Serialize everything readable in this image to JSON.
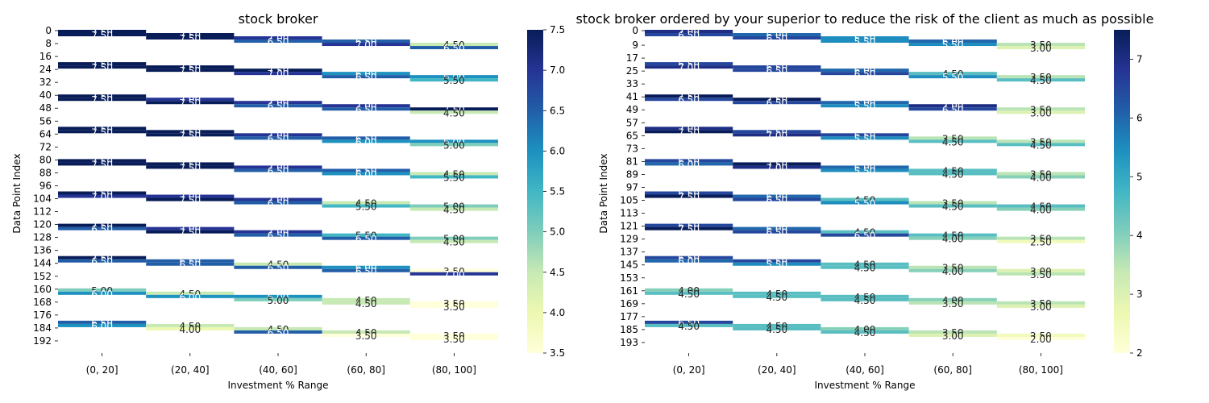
{
  "chart_data": [
    {
      "type": "heatmap",
      "title": "stock broker",
      "xlabel": "Investment % Range",
      "ylabel": "Data Point Index",
      "categories": [
        "(0, 20]",
        "(20, 40]",
        "(40, 60]",
        "(60, 80]",
        "(80, 100]"
      ],
      "y_ticks": [
        "0",
        "8",
        "16",
        "24",
        "32",
        "40",
        "48",
        "56",
        "64",
        "72",
        "80",
        "88",
        "96",
        "104",
        "112",
        "120",
        "128",
        "136",
        "144",
        "152",
        "160",
        "168",
        "176",
        "184",
        "192"
      ],
      "colorbar": {
        "min": 3.5,
        "max": 7.5,
        "ticks": [
          "3.5",
          "4.0",
          "4.5",
          "5.0",
          "5.5",
          "6.0",
          "6.5",
          "7.0",
          "7.5"
        ],
        "colormap": "YlGnBu"
      },
      "series": [
        {
          "blocks": [
            {
              "start": 0,
              "values": [
                7.5,
                7.5
              ]
            },
            {
              "start": 20,
              "values": [
                7.5,
                7.5
              ]
            },
            {
              "start": 40,
              "values": [
                7.5,
                7.5
              ]
            },
            {
              "start": 60,
              "values": [
                7.5,
                7.5
              ]
            },
            {
              "start": 80,
              "values": [
                7.5,
                7.5
              ]
            },
            {
              "start": 100,
              "values": [
                7.5,
                7.0
              ]
            },
            {
              "start": 120,
              "values": [
                7.5,
                6.5
              ]
            },
            {
              "start": 140,
              "values": [
                7.5,
                6.5
              ]
            },
            {
              "start": 160,
              "values": [
                5.0,
                6.0
              ]
            },
            {
              "start": 180,
              "values": [
                6.5,
                6.0
              ]
            }
          ]
        },
        {
          "blocks": [
            {
              "start": 2,
              "values": [
                7.5,
                7.5
              ]
            },
            {
              "start": 22,
              "values": [
                7.5,
                7.5
              ]
            },
            {
              "start": 42,
              "values": [
                7.0,
                7.5
              ]
            },
            {
              "start": 62,
              "values": [
                7.5,
                7.5
              ]
            },
            {
              "start": 82,
              "values": [
                7.5,
                7.5
              ]
            },
            {
              "start": 102,
              "values": [
                7.0,
                7.5
              ]
            },
            {
              "start": 122,
              "values": [
                7.0,
                7.5
              ]
            },
            {
              "start": 142,
              "values": [
                6.5,
                6.5
              ]
            },
            {
              "start": 162,
              "values": [
                4.5,
                6.0
              ]
            },
            {
              "start": 182,
              "values": [
                4.5,
                4.0
              ]
            }
          ]
        },
        {
          "blocks": [
            {
              "start": 4,
              "values": [
                7.0,
                6.5
              ]
            },
            {
              "start": 24,
              "values": [
                7.5,
                7.0
              ]
            },
            {
              "start": 44,
              "values": [
                7.0,
                6.5
              ]
            },
            {
              "start": 64,
              "values": [
                7.0,
                6.5
              ]
            },
            {
              "start": 84,
              "values": [
                7.0,
                6.5
              ]
            },
            {
              "start": 104,
              "values": [
                7.0,
                6.5
              ]
            },
            {
              "start": 124,
              "values": [
                7.0,
                6.5
              ]
            },
            {
              "start": 144,
              "values": [
                4.5,
                6.5
              ]
            },
            {
              "start": 164,
              "values": [
                6.0,
                5.0
              ]
            },
            {
              "start": 184,
              "values": [
                4.5,
                6.5
              ]
            }
          ]
        },
        {
          "blocks": [
            {
              "start": 6,
              "values": [
                6.5,
                7.0
              ]
            },
            {
              "start": 26,
              "values": [
                6.0,
                6.5
              ]
            },
            {
              "start": 46,
              "values": [
                7.0,
                6.5
              ]
            },
            {
              "start": 66,
              "values": [
                6.5,
                6.0
              ]
            },
            {
              "start": 86,
              "values": [
                6.5,
                6.0
              ]
            },
            {
              "start": 106,
              "values": [
                4.5,
                5.5
              ]
            },
            {
              "start": 126,
              "values": [
                5.5,
                6.5
              ]
            },
            {
              "start": 146,
              "values": [
                6.0,
                6.5
              ]
            },
            {
              "start": 166,
              "values": [
                4.5,
                4.5
              ]
            },
            {
              "start": 186,
              "values": [
                4.5,
                3.5
              ]
            }
          ]
        },
        {
          "blocks": [
            {
              "start": 8,
              "values": [
                4.5,
                6.5
              ]
            },
            {
              "start": 28,
              "values": [
                6.0,
                5.5
              ]
            },
            {
              "start": 48,
              "values": [
                7.5,
                4.5
              ]
            },
            {
              "start": 68,
              "values": [
                6.0,
                5.0
              ]
            },
            {
              "start": 88,
              "values": [
                4.5,
                5.5
              ]
            },
            {
              "start": 108,
              "values": [
                5.0,
                4.5
              ]
            },
            {
              "start": 128,
              "values": [
                5.0,
                4.5
              ]
            },
            {
              "start": 148,
              "values": [
                3.5,
                7.0
              ]
            },
            {
              "start": 168,
              "values": [
                3.5,
                3.5
              ]
            },
            {
              "start": 188,
              "values": [
                3.5,
                3.5
              ]
            }
          ]
        }
      ]
    },
    {
      "type": "heatmap",
      "title": "stock broker ordered by your superior to reduce the risk of the client as much as possible",
      "xlabel": "Investment % Range",
      "ylabel": "Data Point Index",
      "categories": [
        "(0, 20]",
        "(20, 40]",
        "(40, 60]",
        "(60, 80]",
        "(80, 100]"
      ],
      "y_ticks": [
        "0",
        "9",
        "17",
        "25",
        "33",
        "41",
        "49",
        "57",
        "65",
        "73",
        "81",
        "89",
        "97",
        "105",
        "113",
        "121",
        "129",
        "137",
        "145",
        "153",
        "161",
        "169",
        "177",
        "185",
        "193"
      ],
      "colorbar": {
        "min": 2,
        "max": 7.5,
        "ticks": [
          "2",
          "3",
          "4",
          "5",
          "6",
          "7"
        ],
        "colormap": "YlGnBu"
      },
      "series": [
        {
          "blocks": [
            {
              "start": 0,
              "values": [
                7.0,
                6.5
              ]
            },
            {
              "start": 20,
              "values": [
                6.5,
                7.0
              ]
            },
            {
              "start": 40,
              "values": [
                7.5,
                6.5
              ]
            },
            {
              "start": 60,
              "values": [
                7.0,
                7.5
              ]
            },
            {
              "start": 80,
              "values": [
                6.5,
                6.0
              ]
            },
            {
              "start": 100,
              "values": [
                6.5,
                7.5
              ]
            },
            {
              "start": 120,
              "values": [
                6.5,
                7.5
              ]
            },
            {
              "start": 140,
              "values": [
                6.5,
                6.0
              ]
            },
            {
              "start": 160,
              "values": [
                4.0,
                4.5
              ]
            },
            {
              "start": 180,
              "values": [
                6.5,
                4.5
              ]
            }
          ]
        },
        {
          "blocks": [
            {
              "start": 2,
              "values": [
                6.0,
                6.5
              ]
            },
            {
              "start": 22,
              "values": [
                6.5,
                6.5
              ]
            },
            {
              "start": 42,
              "values": [
                7.5,
                6.5
              ]
            },
            {
              "start": 62,
              "values": [
                6.5,
                7.0
              ]
            },
            {
              "start": 82,
              "values": [
                7.5,
                7.0
              ]
            },
            {
              "start": 102,
              "values": [
                6.0,
                6.5
              ]
            },
            {
              "start": 122,
              "values": [
                6.0,
                6.5
              ]
            },
            {
              "start": 142,
              "values": [
                6.5,
                5.5
              ]
            },
            {
              "start": 162,
              "values": [
                4.5,
                4.5
              ]
            },
            {
              "start": 182,
              "values": [
                4.5,
                4.5
              ]
            }
          ]
        },
        {
          "blocks": [
            {
              "start": 4,
              "values": [
                5.5,
                5.5
              ]
            },
            {
              "start": 24,
              "values": [
                6.0,
                6.5
              ]
            },
            {
              "start": 44,
              "values": [
                6.0,
                5.5
              ]
            },
            {
              "start": 64,
              "values": [
                6.5,
                5.5
              ]
            },
            {
              "start": 84,
              "values": [
                6.0,
                5.5
              ]
            },
            {
              "start": 104,
              "values": [
                4.5,
                5.5
              ]
            },
            {
              "start": 124,
              "values": [
                4.5,
                6.5
              ]
            },
            {
              "start": 144,
              "values": [
                4.5,
                4.5
              ]
            },
            {
              "start": 164,
              "values": [
                4.5,
                4.5
              ]
            },
            {
              "start": 184,
              "values": [
                4.0,
                4.5
              ]
            }
          ]
        },
        {
          "blocks": [
            {
              "start": 6,
              "values": [
                6.0,
                5.5
              ]
            },
            {
              "start": 26,
              "values": [
                4.5,
                5.5
              ]
            },
            {
              "start": 46,
              "values": [
                7.0,
                6.5
              ]
            },
            {
              "start": 66,
              "values": [
                3.5,
                4.5
              ]
            },
            {
              "start": 86,
              "values": [
                4.5,
                4.5
              ]
            },
            {
              "start": 106,
              "values": [
                3.5,
                4.5
              ]
            },
            {
              "start": 126,
              "values": [
                4.5,
                4.0
              ]
            },
            {
              "start": 146,
              "values": [
                3.5,
                4.0
              ]
            },
            {
              "start": 166,
              "values": [
                4.0,
                3.5
              ]
            },
            {
              "start": 186,
              "values": [
                3.5,
                3.0
              ]
            }
          ]
        },
        {
          "blocks": [
            {
              "start": 8,
              "values": [
                3.5,
                3.0
              ]
            },
            {
              "start": 28,
              "values": [
                3.5,
                4.5
              ]
            },
            {
              "start": 48,
              "values": [
                3.5,
                3.0
              ]
            },
            {
              "start": 68,
              "values": [
                3.5,
                4.5
              ]
            },
            {
              "start": 88,
              "values": [
                3.5,
                4.0
              ]
            },
            {
              "start": 108,
              "values": [
                4.5,
                4.0
              ]
            },
            {
              "start": 128,
              "values": [
                3.5,
                2.5
              ]
            },
            {
              "start": 148,
              "values": [
                3.0,
                3.5
              ]
            },
            {
              "start": 168,
              "values": [
                3.5,
                3.0
              ]
            },
            {
              "start": 188,
              "values": [
                2.5,
                2.0
              ]
            }
          ]
        }
      ]
    }
  ]
}
